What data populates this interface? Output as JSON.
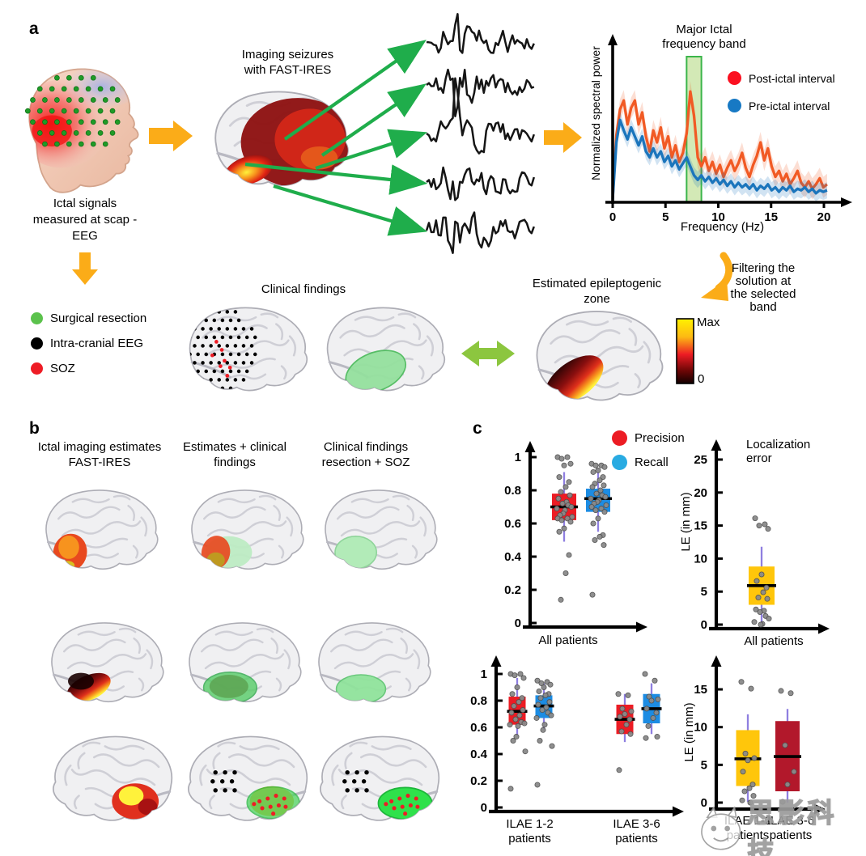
{
  "panels": {
    "a": {
      "label": "a",
      "imaging_title": "Imaging seizures\nwith FAST-IRES",
      "scalp_caption": "Ictal signals\nmeasured at scap -\nEEG",
      "clinical_title": "Clinical findings",
      "ez_title": "Estimated epileptogenic\nzone",
      "filtering_note": "Filtering the\nsolution at\nthe selected\nband",
      "legend": [
        {
          "label": "Surgical resection",
          "color": "#5BC24C"
        },
        {
          "label": "Intra-cranial EEG",
          "color": "#000000"
        },
        {
          "label": "SOZ",
          "color": "#EE1C25"
        }
      ],
      "colorbar": {
        "max_label": "Max",
        "min_label": "0"
      }
    },
    "b": {
      "label": "b",
      "column_headers": [
        "Ictal imaging estimates\nFAST-IRES",
        "Estimates + clinical\nfindings",
        "Clinical findings\nresection + SOZ"
      ]
    },
    "c": {
      "label": "c",
      "legend": [
        {
          "label": "Precision",
          "color": "#EC1C24"
        },
        {
          "label": "Recall",
          "color": "#29ABE2"
        }
      ]
    }
  },
  "watermark": {
    "text": "思影科技"
  },
  "chart_data": [
    {
      "type": "line",
      "title": "Major Ictal\nfrequency band",
      "xlabel": "Frequency (Hz)",
      "ylabel": "Normalized spectral power",
      "xlim": [
        0,
        20.5
      ],
      "xticks": [
        0,
        5,
        10,
        15,
        20
      ],
      "band": {
        "x0": 7.0,
        "x1": 8.4
      },
      "band_color": "#8CC63F",
      "x_start": 0,
      "x_step": 0.35,
      "series": [
        {
          "name": "Post-ictal interval",
          "color": "#F15A24",
          "values": [
            0.03,
            0.45,
            0.62,
            0.68,
            0.52,
            0.63,
            0.68,
            0.52,
            0.6,
            0.44,
            0.34,
            0.48,
            0.4,
            0.5,
            0.36,
            0.44,
            0.3,
            0.38,
            0.27,
            0.33,
            0.46,
            0.74,
            0.58,
            0.3,
            0.24,
            0.3,
            0.21,
            0.27,
            0.19,
            0.25,
            0.17,
            0.23,
            0.28,
            0.21,
            0.26,
            0.33,
            0.23,
            0.17,
            0.25,
            0.31,
            0.4,
            0.28,
            0.36,
            0.24,
            0.17,
            0.21,
            0.14,
            0.19,
            0.12,
            0.16,
            0.21,
            0.13,
            0.1,
            0.14,
            0.09,
            0.12,
            0.16,
            0.1,
            0.12
          ]
        },
        {
          "name": "Pre-ictal interval",
          "color": "#1B75BC",
          "values": [
            0.02,
            0.4,
            0.55,
            0.48,
            0.42,
            0.5,
            0.44,
            0.38,
            0.44,
            0.34,
            0.3,
            0.36,
            0.3,
            0.34,
            0.27,
            0.31,
            0.24,
            0.28,
            0.22,
            0.26,
            0.3,
            0.24,
            0.18,
            0.15,
            0.18,
            0.14,
            0.17,
            0.13,
            0.16,
            0.12,
            0.15,
            0.11,
            0.14,
            0.1,
            0.13,
            0.1,
            0.12,
            0.09,
            0.12,
            0.08,
            0.11,
            0.09,
            0.12,
            0.08,
            0.1,
            0.07,
            0.1,
            0.08,
            0.11,
            0.07,
            0.09,
            0.08,
            0.1,
            0.07,
            0.09,
            0.06,
            0.08,
            0.07,
            0.08
          ]
        }
      ]
    },
    {
      "type": "box",
      "xlabel": "All patients",
      "categories": [
        "All patients"
      ],
      "ylim": [
        0,
        1.05
      ],
      "yticks": [
        0,
        0.2,
        0.4,
        0.6,
        0.8,
        1
      ],
      "series": [
        {
          "name": "Precision",
          "color": "#EC1C24",
          "boxes": [
            {
              "median": 0.7,
              "q1": 0.62,
              "q3": 0.78,
              "whisker_low": 0.49,
              "whisker_high": 0.91,
              "points": [
                1.0,
                1.0,
                0.99,
                0.96,
                0.95,
                0.88,
                0.85,
                0.82,
                0.79,
                0.77,
                0.75,
                0.73,
                0.72,
                0.71,
                0.7,
                0.69,
                0.68,
                0.66,
                0.65,
                0.64,
                0.63,
                0.63,
                0.62,
                0.61,
                0.57,
                0.55,
                0.41,
                0.3,
                0.14
              ]
            }
          ]
        },
        {
          "name": "Recall",
          "color": "#1C8CE3",
          "boxes": [
            {
              "median": 0.75,
              "q1": 0.67,
              "q3": 0.81,
              "whisker_low": 0.55,
              "whisker_high": 0.93,
              "points": [
                0.96,
                0.95,
                0.95,
                0.94,
                0.92,
                0.91,
                0.88,
                0.86,
                0.84,
                0.83,
                0.82,
                0.8,
                0.78,
                0.77,
                0.76,
                0.75,
                0.74,
                0.73,
                0.72,
                0.71,
                0.7,
                0.69,
                0.68,
                0.67,
                0.63,
                0.6,
                0.53,
                0.52,
                0.5,
                0.47,
                0.17
              ]
            }
          ]
        }
      ]
    },
    {
      "type": "box",
      "title": "Localization error",
      "ylabel": "LE (in mm)",
      "xlabel": "All patients",
      "categories": [
        "All patients"
      ],
      "ylim": [
        0,
        27
      ],
      "yticks": [
        0,
        5,
        10,
        15,
        20,
        25
      ],
      "series": [
        {
          "name": "Localization error",
          "color": "#FFC60B",
          "boxes": [
            {
              "median": 5.9,
              "q1": 3.0,
              "q3": 8.8,
              "whisker_low": 0.3,
              "whisker_high": 11.8,
              "points": [
                16.1,
                15.2,
                15.0,
                14.5,
                7.6,
                6.6,
                5.6,
                4.9,
                4.1,
                3.9,
                2.3,
                2.1,
                1.9,
                1.3,
                0.9,
                0.4,
                0.1,
                0.0
              ]
            }
          ]
        }
      ]
    },
    {
      "type": "box",
      "categories": [
        "ILAE 1-2\npatients",
        "ILAE 3-6\npatients"
      ],
      "ylim": [
        0,
        1.05
      ],
      "yticks": [
        0,
        0.2,
        0.4,
        0.6,
        0.8,
        1
      ],
      "series": [
        {
          "name": "Precision",
          "color": "#EC1C24",
          "boxes": [
            {
              "median": 0.72,
              "q1": 0.62,
              "q3": 0.83,
              "whisker_low": 0.53,
              "whisker_high": 0.97,
              "points": [
                1.0,
                1.0,
                0.99,
                0.97,
                0.9,
                0.85,
                0.82,
                0.79,
                0.76,
                0.73,
                0.71,
                0.69,
                0.66,
                0.64,
                0.63,
                0.62,
                0.61,
                0.53,
                0.5,
                0.42,
                0.14
              ]
            },
            {
              "median": 0.66,
              "q1": 0.55,
              "q3": 0.77,
              "whisker_low": 0.49,
              "whisker_high": 0.85,
              "points": [
                0.85,
                0.84,
                0.74,
                0.72,
                0.7,
                0.68,
                0.66,
                0.62,
                0.57,
                0.55,
                0.28
              ]
            }
          ]
        },
        {
          "name": "Recall",
          "color": "#1C8CE3",
          "boxes": [
            {
              "median": 0.76,
              "q1": 0.67,
              "q3": 0.84,
              "whisker_low": 0.58,
              "whisker_high": 0.93,
              "points": [
                0.95,
                0.94,
                0.93,
                0.92,
                0.9,
                0.87,
                0.85,
                0.84,
                0.82,
                0.79,
                0.77,
                0.75,
                0.73,
                0.71,
                0.69,
                0.67,
                0.62,
                0.58,
                0.5,
                0.46,
                0.17
              ]
            },
            {
              "median": 0.74,
              "q1": 0.63,
              "q3": 0.85,
              "whisker_low": 0.55,
              "whisker_high": 0.93,
              "points": [
                1.0,
                0.95,
                0.83,
                0.81,
                0.8,
                0.74,
                0.71,
                0.67,
                0.61,
                0.53,
                0.52
              ]
            }
          ]
        }
      ]
    },
    {
      "type": "box",
      "ylabel": "LE (in mm)",
      "categories": [
        "ILAE 1-2\npatients",
        "ILAE 3-6\npatients"
      ],
      "ylim": [
        0,
        17
      ],
      "yticks": [
        0,
        5,
        10,
        15
      ],
      "series": [
        {
          "name": "ILAE 1-2",
          "color": "#FFC60B",
          "boxes": [
            {
              "median": 5.8,
              "q1": 2.2,
              "q3": 9.6,
              "whisker_low": 0.1,
              "whisker_high": 11.7,
              "points": [
                16.0,
                15.1,
                6.5,
                5.9,
                5.6,
                4.1,
                2.4,
                1.9,
                1.5,
                0.9,
                0.3,
                0.0
              ]
            }
          ]
        },
        {
          "name": "ILAE 3-6",
          "color": "#B2182B",
          "boxes": [
            {
              "median": 6.1,
              "q1": 1.5,
              "q3": 10.8,
              "whisker_low": 0.0,
              "whisker_high": 12.4,
              "points": [
                14.8,
                14.5,
                7.6,
                4.1,
                2.4,
                0.1
              ]
            }
          ]
        }
      ]
    }
  ]
}
